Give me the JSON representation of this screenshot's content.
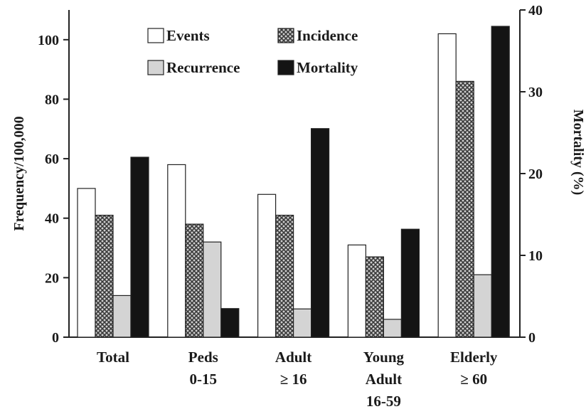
{
  "chart_data": {
    "type": "bar",
    "title": "",
    "categories": [
      [
        "Total"
      ],
      [
        "Peds",
        "0-15"
      ],
      [
        "Adult",
        "≥ 16"
      ],
      [
        "Young",
        "Adult",
        "16-59"
      ],
      [
        "Elderly",
        "≥ 60"
      ]
    ],
    "series": [
      {
        "name": "Events",
        "axis": "left",
        "pattern": "white",
        "values": [
          50,
          58,
          48,
          31,
          102
        ]
      },
      {
        "name": "Incidence",
        "axis": "left",
        "pattern": "crosshatch",
        "values": [
          41,
          38,
          41,
          27,
          86
        ]
      },
      {
        "name": "Recurrence",
        "axis": "left",
        "pattern": "lightgray",
        "values": [
          14,
          32,
          9.5,
          6,
          21
        ]
      },
      {
        "name": "Mortality",
        "axis": "right",
        "pattern": "black",
        "values": [
          22,
          3.5,
          25.5,
          13.2,
          38
        ]
      }
    ],
    "ylabel": "Frequency/100,000",
    "y2label": "Mortality (%)",
    "ylim": [
      0,
      110
    ],
    "y2lim": [
      0,
      40
    ],
    "yticks": [
      0,
      20,
      40,
      60,
      80,
      100
    ],
    "y2ticks": [
      0,
      10,
      20,
      30,
      40
    ],
    "grid": false,
    "legend_position": "top"
  }
}
